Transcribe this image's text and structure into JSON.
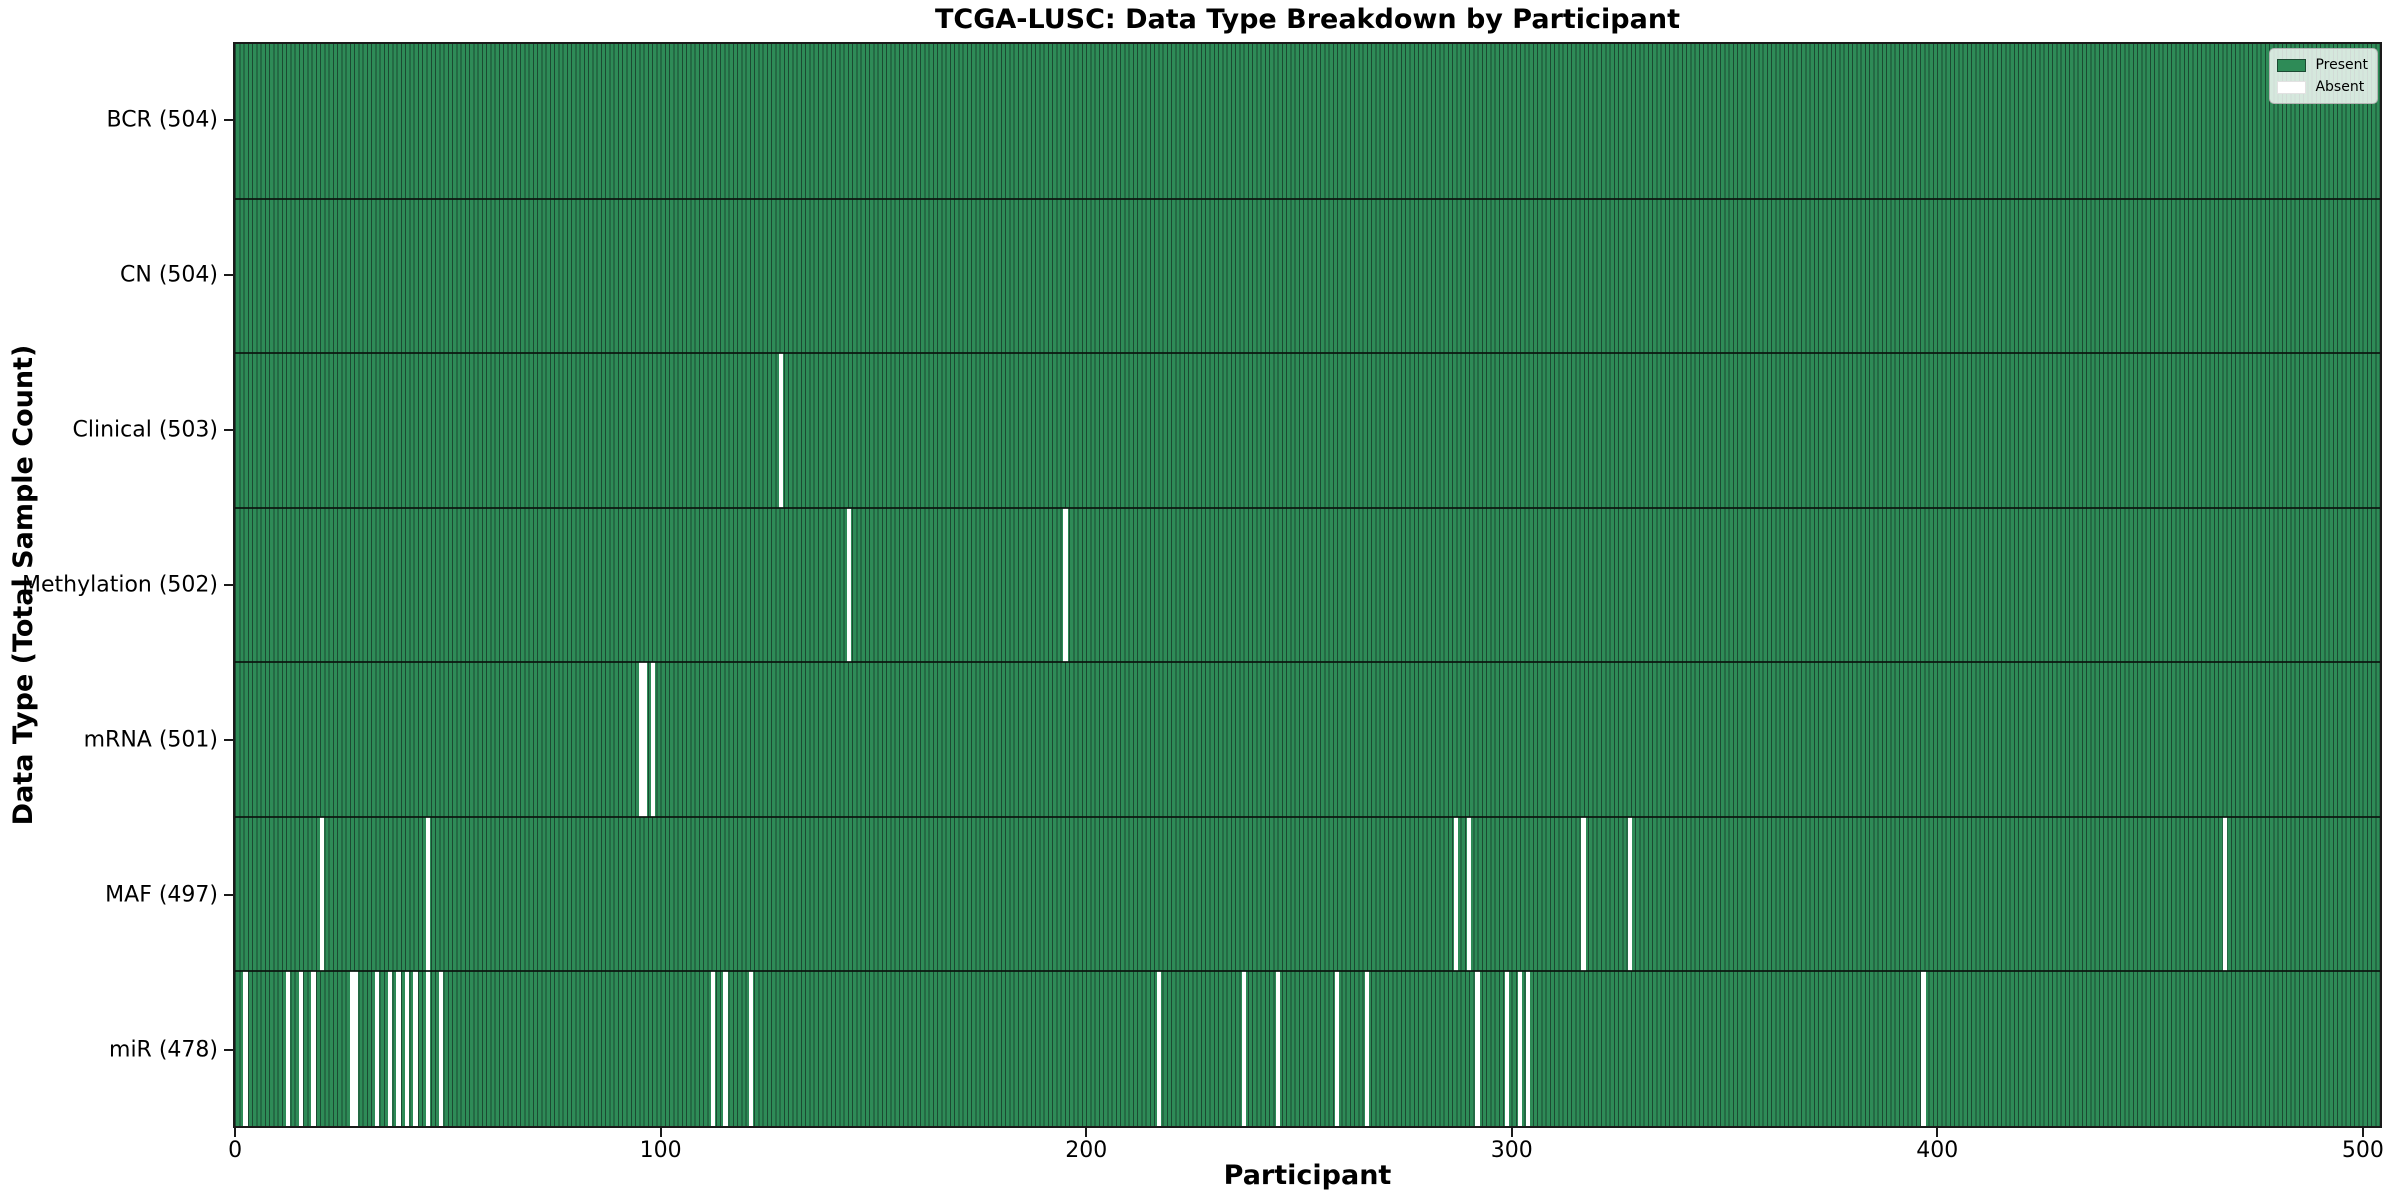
{
  "title": "TCGA-LUSC: Data Type Breakdown by Participant",
  "chart_data": {
    "type": "heatmap",
    "title": "TCGA-LUSC: Data Type Breakdown by Participant",
    "xlabel": "Participant",
    "ylabel": "Data Type (Total Sample Count)",
    "n_participants": 504,
    "xlim": [
      -0.5,
      504.5
    ],
    "x_ticks": [
      0,
      100,
      200,
      300,
      400,
      500
    ],
    "grid": false,
    "legend": {
      "position": "upper-right",
      "entries": [
        {
          "label": "Present",
          "color": "#2E8B57",
          "edge": "#1b4a32"
        },
        {
          "label": "Absent",
          "color": "#FFFFFF",
          "edge": "#e2e2e2"
        }
      ]
    },
    "colors": {
      "present": "#2E8B57",
      "bar_edge": "#1b4a32",
      "absent": "#FFFFFF",
      "row_border": "#0a140e",
      "spine": "#1a1a1a"
    },
    "rows": [
      {
        "label": "BCR (504)",
        "data_type": "BCR",
        "total": 504,
        "absent_participants": []
      },
      {
        "label": "CN (504)",
        "data_type": "CN",
        "total": 504,
        "absent_participants": []
      },
      {
        "label": "Clinical (503)",
        "data_type": "Clinical",
        "total": 503,
        "absent_participants": [
          128
        ]
      },
      {
        "label": "Methylation (502)",
        "data_type": "Methylation",
        "total": 502,
        "absent_participants": [
          144,
          195
        ]
      },
      {
        "label": "mRNA (501)",
        "data_type": "mRNA",
        "total": 501,
        "absent_participants": [
          95,
          96,
          98
        ]
      },
      {
        "label": "MAF (497)",
        "data_type": "MAF",
        "total": 497,
        "absent_participants": [
          20,
          45,
          287,
          290,
          317,
          328,
          468
        ]
      },
      {
        "label": "miR (478)",
        "data_type": "miR",
        "total": 478,
        "absent_participants": [
          2,
          12,
          15,
          18,
          27,
          28,
          33,
          36,
          38,
          40,
          42,
          45,
          48,
          112,
          115,
          121,
          217,
          237,
          245,
          259,
          266,
          292,
          299,
          302,
          304,
          397
        ]
      }
    ]
  }
}
